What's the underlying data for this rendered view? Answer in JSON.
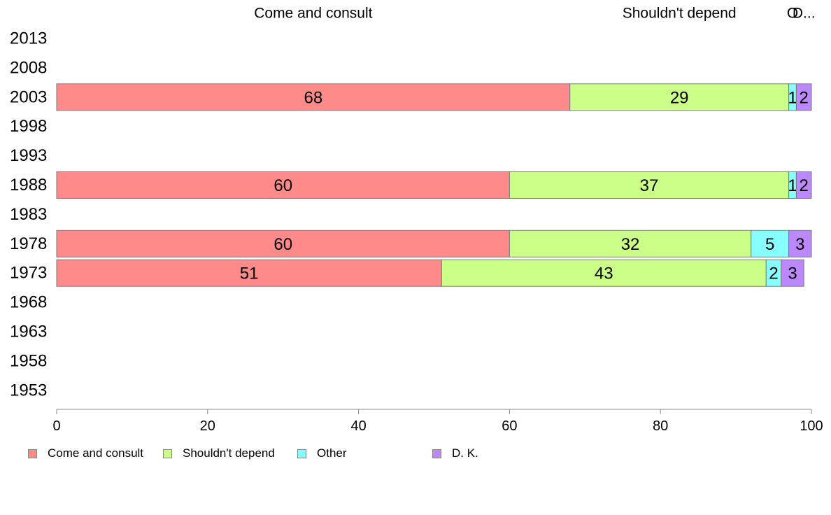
{
  "chart_data": {
    "type": "bar",
    "orientation": "horizontal",
    "stacked": true,
    "categories": [
      "2013",
      "2008",
      "2003",
      "1998",
      "1993",
      "1988",
      "1983",
      "1978",
      "1973",
      "1968",
      "1963",
      "1958",
      "1953"
    ],
    "series": [
      {
        "name": "Come and consult",
        "color": "#FF8A8A",
        "values": [
          null,
          null,
          68,
          null,
          null,
          60,
          null,
          60,
          51,
          null,
          null,
          null,
          null
        ]
      },
      {
        "name": "Shouldn't depend",
        "color": "#CCFF88",
        "values": [
          null,
          null,
          29,
          null,
          null,
          37,
          null,
          32,
          43,
          null,
          null,
          null,
          null
        ]
      },
      {
        "name": "Other",
        "color": "#88FFFF",
        "values": [
          null,
          null,
          1,
          null,
          null,
          1,
          null,
          5,
          2,
          null,
          null,
          null,
          null
        ]
      },
      {
        "name": "D. K.",
        "color": "#BB88FF",
        "values": [
          null,
          null,
          2,
          null,
          null,
          2,
          null,
          3,
          3,
          null,
          null,
          null,
          null
        ]
      }
    ],
    "top_labels": [
      "Come and consult",
      "Shouldn't depend",
      "O",
      "D..."
    ],
    "xlim": [
      0,
      100
    ],
    "xticks": [
      0,
      20,
      40,
      60,
      80,
      100
    ],
    "grid": false,
    "legend_position": "bottom"
  }
}
